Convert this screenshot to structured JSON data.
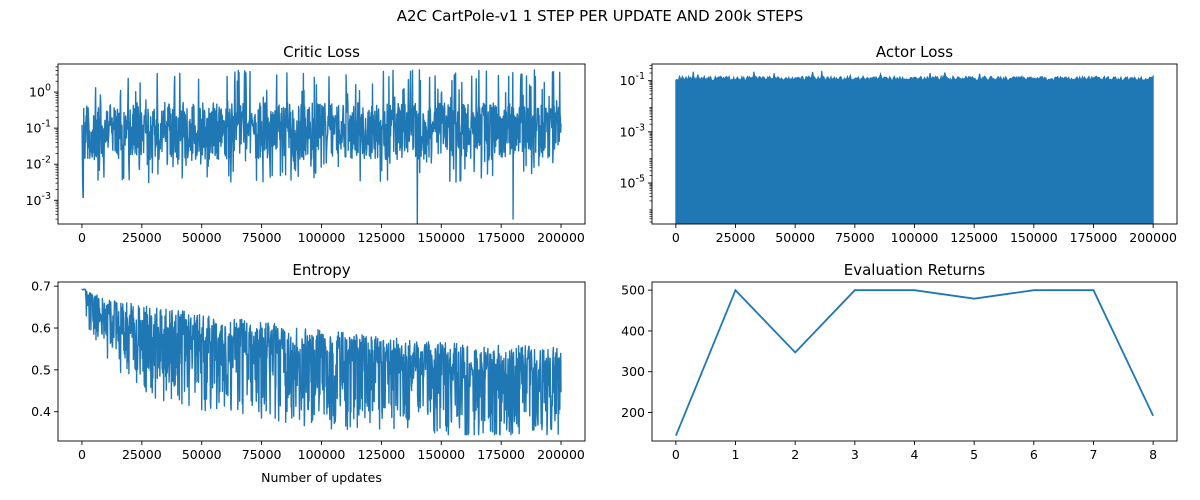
{
  "figure": {
    "suptitle": "A2C CartPole-v1 1 STEP PER UPDATE AND 200k STEPS",
    "line_color": "#1f77b4"
  },
  "chart_data": [
    {
      "id": "critic",
      "type": "line",
      "title": "Critic Loss",
      "xlabel": "",
      "ylabel": "",
      "yscale": "log",
      "xlim": [
        -10000,
        210000
      ],
      "ylim": [
        0.00022,
        6
      ],
      "xticks": [
        0,
        25000,
        50000,
        75000,
        100000,
        125000,
        150000,
        175000,
        200000
      ],
      "yticks": [
        0.001,
        0.01,
        0.1,
        1
      ],
      "ytick_labels": [
        "10^-3",
        "10^-2",
        "10^-1",
        "10^0"
      ],
      "series": [
        {
          "style": "noisy-log",
          "x_range": [
            0,
            200000
          ],
          "center": 0.12,
          "upper": 0.5,
          "spikes_to": 4.2,
          "lows_to": 0.003,
          "min": 0.0002,
          "notable_minima": [
            [
              500,
              0.0012
            ],
            [
              140000,
              0.00022
            ],
            [
              180000,
              0.0003
            ]
          ]
        }
      ]
    },
    {
      "id": "actor",
      "type": "line",
      "title": "Actor Loss",
      "xlabel": "",
      "ylabel": "",
      "yscale": "log",
      "xlim": [
        -10000,
        210000
      ],
      "ylim": [
        2.5e-07,
        0.45
      ],
      "xticks": [
        0,
        25000,
        50000,
        75000,
        100000,
        125000,
        150000,
        175000,
        200000
      ],
      "yticks": [
        1e-05,
        0.001,
        0.1
      ],
      "ytick_labels": [
        "10^-5",
        "10^-3",
        "10^-1"
      ],
      "series": [
        {
          "style": "dense-fill",
          "x_range": [
            0,
            200000
          ],
          "upper_center": 0.12,
          "upper_max": 0.27,
          "lower": 0.0
        }
      ]
    },
    {
      "id": "entropy",
      "type": "line",
      "title": "Entropy",
      "xlabel": "Number of updates",
      "ylabel": "",
      "yscale": "linear",
      "xlim": [
        -10000,
        210000
      ],
      "ylim": [
        0.33,
        0.71
      ],
      "xticks": [
        0,
        25000,
        50000,
        75000,
        100000,
        125000,
        150000,
        175000,
        200000
      ],
      "yticks": [
        0.4,
        0.5,
        0.6,
        0.7
      ],
      "ytick_labels": [
        "0.4",
        "0.5",
        "0.6",
        "0.7"
      ],
      "series": [
        {
          "style": "noisy-band",
          "upper_trend": [
            [
              0,
              0.693
            ],
            [
              10000,
              0.67
            ],
            [
              25000,
              0.655
            ],
            [
              50000,
              0.635
            ],
            [
              75000,
              0.615
            ],
            [
              100000,
              0.595
            ],
            [
              125000,
              0.58
            ],
            [
              150000,
              0.565
            ],
            [
              175000,
              0.56
            ],
            [
              200000,
              0.555
            ]
          ],
          "lower_trend": [
            [
              0,
              0.69
            ],
            [
              5000,
              0.6
            ],
            [
              25000,
              0.48
            ],
            [
              50000,
              0.44
            ],
            [
              75000,
              0.42
            ],
            [
              100000,
              0.4
            ],
            [
              125000,
              0.39
            ],
            [
              150000,
              0.375
            ],
            [
              175000,
              0.37
            ],
            [
              200000,
              0.38
            ]
          ],
          "min": 0.345
        }
      ]
    },
    {
      "id": "eval",
      "type": "line",
      "title": "Evaluation Returns",
      "xlabel": "",
      "ylabel": "",
      "yscale": "linear",
      "xlim": [
        -0.4,
        8.4
      ],
      "ylim": [
        130,
        520
      ],
      "xticks": [
        0,
        1,
        2,
        3,
        4,
        5,
        6,
        7,
        8
      ],
      "yticks": [
        200,
        300,
        400,
        500
      ],
      "ytick_labels": [
        "200",
        "300",
        "400",
        "500"
      ],
      "series": [
        {
          "style": "plain",
          "x": [
            0,
            1,
            2,
            3,
            4,
            5,
            6,
            7,
            8
          ],
          "y": [
            143,
            500,
            347,
            500,
            500,
            479,
            500,
            500,
            192
          ]
        }
      ]
    }
  ]
}
